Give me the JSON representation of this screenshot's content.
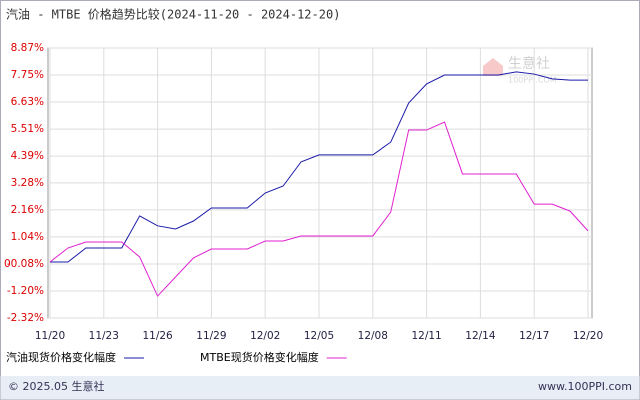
{
  "chart_data": {
    "type": "line",
    "title": "汽油 - MTBE 价格趋势比较(2024-11-20 - 2024-12-20)",
    "categories": [
      "11/20",
      null,
      null,
      "11/23",
      null,
      null,
      "11/26",
      null,
      null,
      "11/29",
      null,
      null,
      "12/02",
      null,
      null,
      "12/05",
      null,
      null,
      "12/08",
      null,
      null,
      "12/11",
      null,
      null,
      "12/14",
      null,
      null,
      "12/17",
      null,
      null,
      "12/20"
    ],
    "series": [
      {
        "name": "汽油现货价格变化幅度",
        "color": "#1a1aa8",
        "values": [
          0,
          0,
          0.58,
          0.58,
          0.58,
          1.91,
          1.5,
          1.37,
          1.7,
          2.24,
          2.24,
          2.24,
          2.86,
          3.15,
          4.15,
          4.44,
          4.44,
          4.44,
          4.44,
          4.97,
          6.59,
          7.38,
          7.75,
          7.75,
          7.75,
          7.75,
          7.88,
          7.79,
          7.59,
          7.54,
          7.54
        ]
      },
      {
        "name": "MTBE现货价格变化幅度",
        "color": "#e020d0",
        "values": [
          0,
          0.58,
          0.83,
          0.83,
          0.83,
          0.21,
          -1.41,
          -0.62,
          0.17,
          0.54,
          0.54,
          0.54,
          0.87,
          0.87,
          1.08,
          1.08,
          1.08,
          1.08,
          1.08,
          2.07,
          5.47,
          5.47,
          5.8,
          3.65,
          3.65,
          3.65,
          3.65,
          2.4,
          2.4,
          2.11,
          1.29
        ]
      }
    ],
    "ylim": [
      -2.32,
      8.87
    ],
    "yticks": [
      {
        "value": 8.87,
        "label": "8.87%"
      },
      {
        "value": 7.75,
        "label": "7.75%"
      },
      {
        "value": 6.63,
        "label": "6.63%"
      },
      {
        "value": 5.51,
        "label": "5.51%"
      },
      {
        "value": 4.39,
        "label": "4.39%"
      },
      {
        "value": 3.28,
        "label": "3.28%"
      },
      {
        "value": 2.16,
        "label": "2.16%"
      },
      {
        "value": 1.04,
        "label": "1.04%"
      },
      {
        "value": -0.08,
        "label": "-0.08%"
      },
      {
        "value": -1.2,
        "label": "-1.20%"
      },
      {
        "value": -2.32,
        "label": "-2.32%"
      }
    ],
    "y_zero_label": "0",
    "grid": true,
    "watermark": {
      "name": "生意社",
      "site": "100PPI.COM"
    },
    "footer": {
      "left": "© 2025.05 生意社",
      "right": "www.100PPI.com"
    }
  }
}
